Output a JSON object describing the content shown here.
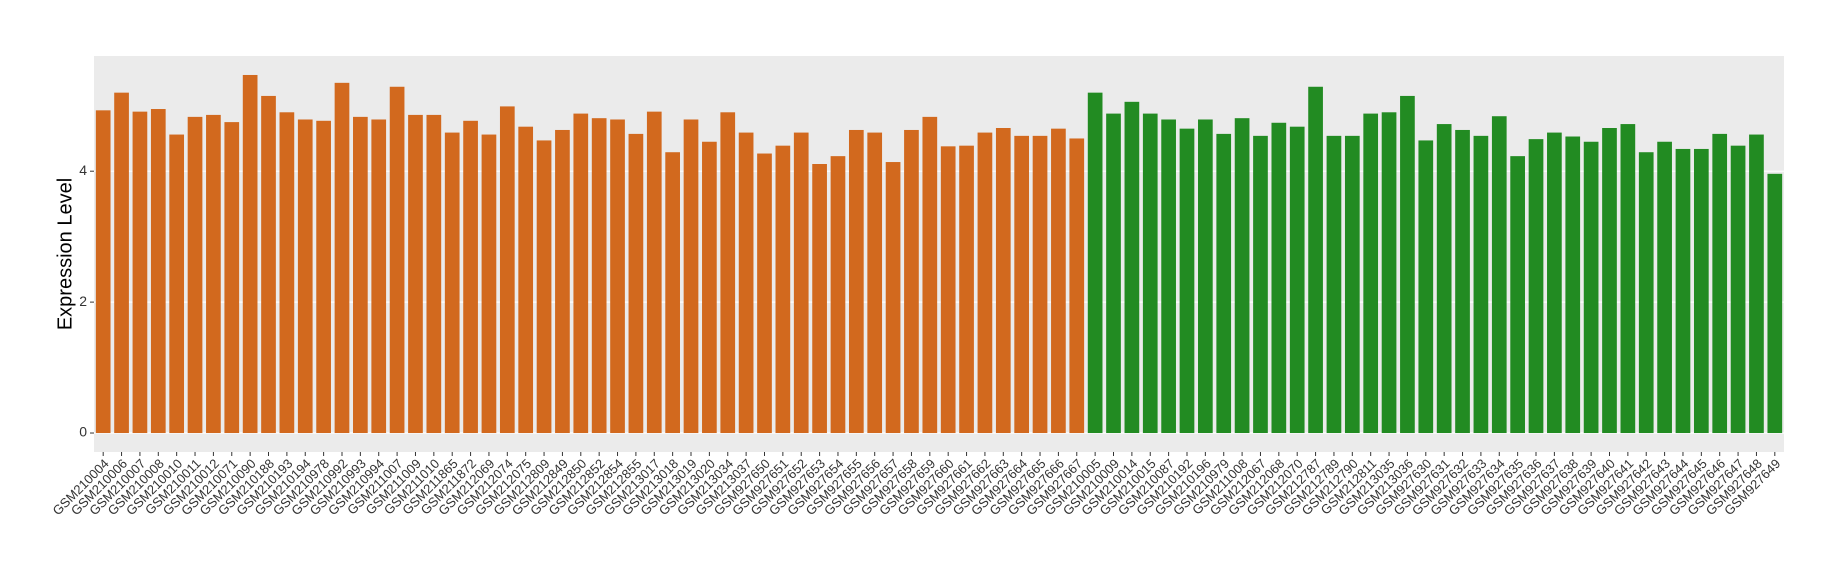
{
  "chart_data": {
    "type": "bar",
    "y_label": "Expression Level",
    "categories": [
      "GSM210004",
      "GSM210006",
      "GSM210007",
      "GSM210008",
      "GSM210010",
      "GSM210011",
      "GSM210012",
      "GSM210071",
      "GSM210090",
      "GSM210188",
      "GSM210193",
      "GSM210194",
      "GSM210978",
      "GSM210992",
      "GSM210993",
      "GSM210994",
      "GSM211007",
      "GSM211009",
      "GSM211010",
      "GSM211865",
      "GSM211872",
      "GSM212069",
      "GSM212074",
      "GSM212075",
      "GSM212809",
      "GSM212849",
      "GSM212850",
      "GSM212852",
      "GSM212854",
      "GSM212855",
      "GSM213017",
      "GSM213018",
      "GSM213019",
      "GSM213020",
      "GSM213034",
      "GSM213037",
      "GSM927650",
      "GSM927651",
      "GSM927652",
      "GSM927653",
      "GSM927654",
      "GSM927655",
      "GSM927656",
      "GSM927657",
      "GSM927658",
      "GSM927659",
      "GSM927660",
      "GSM927661",
      "GSM927662",
      "GSM927663",
      "GSM927664",
      "GSM927665",
      "GSM927666",
      "GSM927667",
      "GSM210005",
      "GSM210009",
      "GSM210014",
      "GSM210015",
      "GSM210087",
      "GSM210192",
      "GSM210196",
      "GSM210979",
      "GSM211008",
      "GSM212067",
      "GSM212068",
      "GSM212070",
      "GSM212787",
      "GSM212789",
      "GSM212790",
      "GSM212811",
      "GSM213035",
      "GSM213036",
      "GSM927630",
      "GSM927631",
      "GSM927632",
      "GSM927633",
      "GSM927634",
      "GSM927635",
      "GSM927636",
      "GSM927637",
      "GSM927638",
      "GSM927639",
      "GSM927640",
      "GSM927641",
      "GSM927642",
      "GSM927643",
      "GSM927644",
      "GSM927645",
      "GSM927646",
      "GSM927647",
      "GSM927648",
      "GSM927649"
    ],
    "values": [
      4.93,
      5.2,
      4.91,
      4.95,
      4.56,
      4.83,
      4.86,
      4.75,
      5.47,
      5.15,
      4.9,
      4.79,
      4.77,
      5.35,
      4.83,
      4.79,
      5.29,
      4.86,
      4.86,
      4.59,
      4.77,
      4.56,
      4.99,
      4.68,
      4.47,
      4.63,
      4.88,
      4.81,
      4.79,
      4.57,
      4.91,
      4.29,
      4.79,
      4.45,
      4.9,
      4.59,
      4.27,
      4.39,
      4.59,
      4.11,
      4.23,
      4.63,
      4.59,
      4.14,
      4.63,
      4.83,
      4.38,
      4.39,
      4.59,
      4.66,
      4.54,
      4.54,
      4.65,
      4.5,
      5.2,
      4.88,
      5.06,
      4.88,
      4.79,
      4.65,
      4.79,
      4.57,
      4.81,
      4.54,
      4.74,
      4.68,
      5.29,
      4.54,
      4.54,
      4.88,
      4.9,
      5.15,
      4.47,
      4.72,
      4.63,
      4.54,
      4.84,
      4.23,
      4.49,
      4.59,
      4.53,
      4.45,
      4.66,
      4.72,
      4.29,
      4.45,
      4.34,
      4.34,
      4.57,
      4.39,
      4.56,
      3.96
    ],
    "colors": [
      "#d2691e",
      "#d2691e",
      "#d2691e",
      "#d2691e",
      "#d2691e",
      "#d2691e",
      "#d2691e",
      "#d2691e",
      "#d2691e",
      "#d2691e",
      "#d2691e",
      "#d2691e",
      "#d2691e",
      "#d2691e",
      "#d2691e",
      "#d2691e",
      "#d2691e",
      "#d2691e",
      "#d2691e",
      "#d2691e",
      "#d2691e",
      "#d2691e",
      "#d2691e",
      "#d2691e",
      "#d2691e",
      "#d2691e",
      "#d2691e",
      "#d2691e",
      "#d2691e",
      "#d2691e",
      "#d2691e",
      "#d2691e",
      "#d2691e",
      "#d2691e",
      "#d2691e",
      "#d2691e",
      "#d2691e",
      "#d2691e",
      "#d2691e",
      "#d2691e",
      "#d2691e",
      "#d2691e",
      "#d2691e",
      "#d2691e",
      "#d2691e",
      "#d2691e",
      "#d2691e",
      "#d2691e",
      "#d2691e",
      "#d2691e",
      "#d2691e",
      "#d2691e",
      "#d2691e",
      "#d2691e",
      "#228b22",
      "#228b22",
      "#228b22",
      "#228b22",
      "#228b22",
      "#228b22",
      "#228b22",
      "#228b22",
      "#228b22",
      "#228b22",
      "#228b22",
      "#228b22",
      "#228b22",
      "#228b22",
      "#228b22",
      "#228b22",
      "#228b22",
      "#228b22",
      "#228b22",
      "#228b22",
      "#228b22",
      "#228b22",
      "#228b22",
      "#228b22",
      "#228b22",
      "#228b22",
      "#228b22",
      "#228b22",
      "#228b22",
      "#228b22",
      "#228b22",
      "#228b22",
      "#228b22",
      "#228b22",
      "#228b22",
      "#228b22",
      "#228b22",
      "#228b22"
    ],
    "ylim": [
      -0.29,
      5.76
    ],
    "yticks": [
      0,
      2,
      4
    ],
    "grid": true
  }
}
